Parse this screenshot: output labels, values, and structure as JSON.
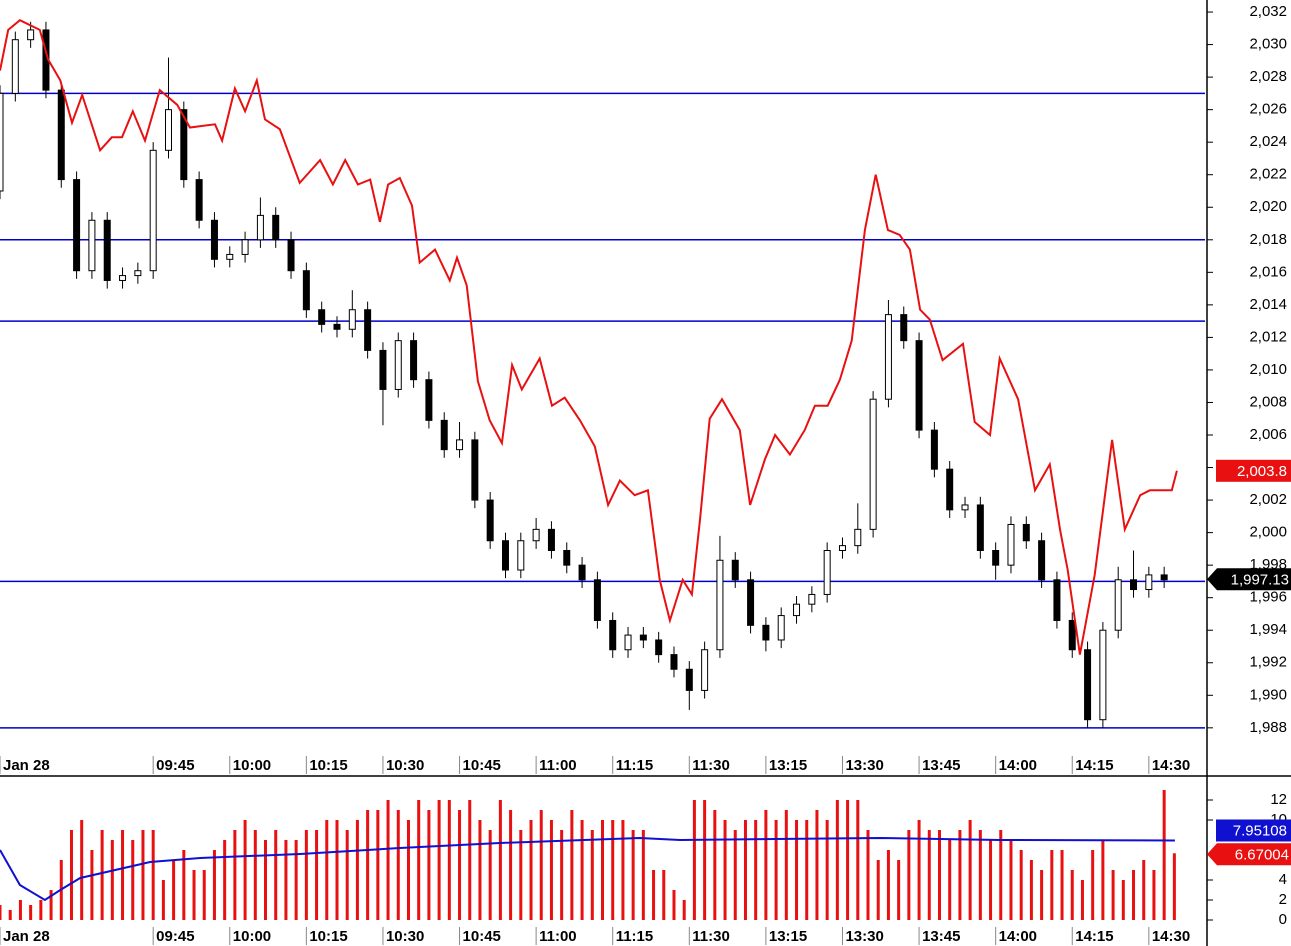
{
  "chart_data": [
    {
      "type": "candlestick",
      "xlim": [
        0,
        236
      ],
      "ylim": [
        1986.76,
        2032.74
      ],
      "xticks": [
        {
          "value": 0,
          "label": "Jan 28"
        },
        {
          "value": 30,
          "label": "09:45"
        },
        {
          "value": 45,
          "label": "10:00"
        },
        {
          "value": 60,
          "label": "10:15"
        },
        {
          "value": 75,
          "label": "10:30"
        },
        {
          "value": 90,
          "label": "10:45"
        },
        {
          "value": 105,
          "label": "11:00"
        },
        {
          "value": 120,
          "label": "11:15"
        },
        {
          "value": 135,
          "label": "11:30"
        },
        {
          "value": 150,
          "label": "13:15"
        },
        {
          "value": 165,
          "label": "13:30"
        },
        {
          "value": 180,
          "label": "13:45"
        },
        {
          "value": 195,
          "label": "14:00"
        },
        {
          "value": 210,
          "label": "14:15"
        },
        {
          "value": 225,
          "label": "14:30"
        }
      ],
      "yticks": [
        {
          "value": 1988,
          "label": "1,988"
        },
        {
          "value": 1990,
          "label": "1,990"
        },
        {
          "value": 1992,
          "label": "1,992"
        },
        {
          "value": 1994,
          "label": "1,994"
        },
        {
          "value": 1996,
          "label": "1,996"
        },
        {
          "value": 1998,
          "label": "1,998"
        },
        {
          "value": 2000,
          "label": "2,000"
        },
        {
          "value": 2002,
          "label": "2,002"
        },
        {
          "value": 2004,
          "label": "2,004"
        },
        {
          "value": 2006,
          "label": "2,006"
        },
        {
          "value": 2008,
          "label": "2,008"
        },
        {
          "value": 2010,
          "label": "2,010"
        },
        {
          "value": 2012,
          "label": "2,012"
        },
        {
          "value": 2014,
          "label": "2,014"
        },
        {
          "value": 2016,
          "label": "2,016"
        },
        {
          "value": 2018,
          "label": "2,018"
        },
        {
          "value": 2020,
          "label": "2,020"
        },
        {
          "value": 2022,
          "label": "2,022"
        },
        {
          "value": 2024,
          "label": "2,024"
        },
        {
          "value": 2026,
          "label": "2,026"
        },
        {
          "value": 2028,
          "label": "2,028"
        },
        {
          "value": 2030,
          "label": "2,030"
        },
        {
          "value": 2032,
          "label": "2,032"
        }
      ],
      "up_color": "#ffffff",
      "down_color": "#000000",
      "color": "#000000",
      "x": [
        0,
        3,
        6,
        9,
        12,
        15,
        18,
        21,
        24,
        27,
        30,
        33,
        36,
        39,
        42,
        45,
        48,
        51,
        54,
        57,
        60,
        63,
        66,
        69,
        72,
        75,
        78,
        81,
        84,
        87,
        90,
        93,
        96,
        99,
        102,
        105,
        108,
        111,
        114,
        117,
        120,
        123,
        126,
        129,
        132,
        135,
        138,
        141,
        144,
        147,
        150,
        153,
        156,
        159,
        162,
        165,
        168,
        171,
        174,
        177,
        180,
        183,
        186,
        189,
        192,
        195,
        198,
        201,
        204,
        207,
        210,
        213,
        216,
        219,
        222,
        225,
        228
      ],
      "open": [
        2021.0,
        2027.0,
        2030.3,
        2030.9,
        2027.2,
        2021.7,
        2016.1,
        2019.2,
        2015.5,
        2015.8,
        2016.1,
        2023.5,
        2026.0,
        2021.7,
        2019.2,
        2016.8,
        2017.1,
        2018.0,
        2019.5,
        2018.0,
        2016.1,
        2013.7,
        2012.8,
        2012.5,
        2013.7,
        2011.2,
        2008.8,
        2011.8,
        2009.4,
        2006.9,
        2005.1,
        2005.7,
        2002.0,
        1999.5,
        1997.7,
        1999.5,
        2000.2,
        1998.9,
        1998.0,
        1997.1,
        1994.6,
        1992.8,
        1993.7,
        1993.4,
        1992.5,
        1991.6,
        1990.3,
        1992.8,
        1998.3,
        1997.1,
        1994.3,
        1993.4,
        1994.9,
        1995.6,
        1996.2,
        1998.9,
        1999.2,
        2000.2,
        2008.2,
        2013.4,
        2011.8,
        2006.3,
        2003.9,
        2001.4,
        2001.7,
        1998.9,
        1998.0,
        2000.5,
        1999.5,
        1997.1,
        1994.6,
        1992.8,
        1988.5,
        1994.0,
        1997.1,
        1996.5,
        1997.4
      ],
      "high": [
        2027.5,
        2030.8,
        2031.4,
        2031.4,
        2027.7,
        2022.2,
        2019.7,
        2019.7,
        2016.3,
        2016.6,
        2024.0,
        2029.2,
        2026.5,
        2022.2,
        2019.7,
        2017.6,
        2018.5,
        2020.6,
        2020.0,
        2018.5,
        2016.6,
        2014.2,
        2013.3,
        2014.9,
        2014.2,
        2011.7,
        2012.3,
        2012.3,
        2009.9,
        2007.4,
        2006.8,
        2006.2,
        2002.5,
        2000.0,
        2000.0,
        2000.9,
        2000.7,
        1999.4,
        1998.5,
        1997.6,
        1995.1,
        1994.2,
        1994.2,
        1993.9,
        1993.0,
        1992.1,
        1993.3,
        1999.8,
        1998.8,
        1997.6,
        1994.8,
        1995.4,
        1996.1,
        1996.7,
        1999.4,
        1999.7,
        2001.8,
        2008.7,
        2014.3,
        2013.9,
        2012.3,
        2006.8,
        2004.4,
        2002.2,
        2002.2,
        1999.4,
        2001.0,
        2001.0,
        2000.0,
        1997.6,
        1995.1,
        1993.3,
        1994.5,
        1997.9,
        1998.9,
        1997.9,
        1997.9
      ],
      "low": [
        2020.5,
        2026.5,
        2029.8,
        2026.7,
        2021.2,
        2015.6,
        2015.6,
        2015.0,
        2015.0,
        2015.3,
        2015.6,
        2023.0,
        2021.2,
        2018.7,
        2016.3,
        2016.3,
        2016.6,
        2017.5,
        2017.5,
        2015.6,
        2013.2,
        2012.3,
        2012.0,
        2012.0,
        2010.7,
        2006.6,
        2008.3,
        2008.9,
        2006.4,
        2004.6,
        2004.6,
        2001.5,
        1999.0,
        1997.2,
        1997.2,
        1999.0,
        1998.4,
        1997.5,
        1996.6,
        1994.1,
        1992.3,
        1992.3,
        1992.9,
        1992.0,
        1991.1,
        1989.1,
        1989.8,
        1992.3,
        1996.6,
        1993.8,
        1992.7,
        1992.9,
        1994.4,
        1995.1,
        1995.7,
        1998.4,
        1998.7,
        1999.7,
        2007.7,
        2011.3,
        2005.8,
        2003.4,
        2000.9,
        2000.9,
        1998.4,
        1997.1,
        1997.5,
        1999.0,
        1996.6,
        1994.1,
        1992.3,
        1988.0,
        1988.0,
        1993.5,
        1996.0,
        1996.0,
        1996.6
      ],
      "close": [
        2027.0,
        2030.3,
        2030.9,
        2027.2,
        2021.7,
        2016.1,
        2019.2,
        2015.5,
        2015.8,
        2016.1,
        2023.5,
        2026.0,
        2021.7,
        2019.2,
        2016.8,
        2017.1,
        2018.0,
        2019.5,
        2018.0,
        2016.1,
        2013.7,
        2012.8,
        2012.5,
        2013.7,
        2011.2,
        2008.8,
        2011.8,
        2009.4,
        2006.9,
        2005.1,
        2005.7,
        2002.0,
        1999.5,
        1997.7,
        1999.5,
        2000.2,
        1998.9,
        1998.0,
        1997.1,
        1994.6,
        1992.8,
        1993.7,
        1993.4,
        1992.5,
        1991.6,
        1990.3,
        1992.8,
        1998.3,
        1997.1,
        1994.3,
        1993.4,
        1994.9,
        1995.6,
        1996.2,
        1998.9,
        1999.2,
        2000.2,
        2008.2,
        2013.4,
        2011.8,
        2006.3,
        2003.9,
        2001.4,
        2001.7,
        1998.9,
        1998.0,
        2000.5,
        1999.5,
        1997.1,
        1994.6,
        1992.8,
        1988.5,
        1994.0,
        1997.1,
        1996.5,
        1997.4,
        1997.1
      ],
      "last": {
        "value": 1997.13,
        "label": "1,997.13"
      },
      "hlines": {
        "color": "#0000cc",
        "values": [
          2027,
          2018,
          2013,
          1997,
          1988
        ]
      },
      "series": [
        {
          "color": "#e81010",
          "x": [
            0,
            1.6,
            3.9,
            7.8,
            9.4,
            11.8,
            14.1,
            16.1,
            19.6,
            21.9,
            23.9,
            26.0,
            28.4,
            31.3,
            34.7,
            37.2,
            42.1,
            43.5,
            46.0,
            48.0,
            50.3,
            51.9,
            54.8,
            58.7,
            62.7,
            65.2,
            67.6,
            70.1,
            72.5,
            74.4,
            76.0,
            78.3,
            80.7,
            82.2,
            85.2,
            88.1,
            89.5,
            91.4,
            93.6,
            95.9,
            98.3,
            100.3,
            102.2,
            105.7,
            108.1,
            110.6,
            113.6,
            116.5,
            119.1,
            121.4,
            124.3,
            126.9,
            129.2,
            131.2,
            133.7,
            135.5,
            137.1,
            139.0,
            141.4,
            144.9,
            146.9,
            149.8,
            151.8,
            154.7,
            157.6,
            159.6,
            162.1,
            164.5,
            166.8,
            169.4,
            171.5,
            173.9,
            176.2,
            178.2,
            180.2,
            182.1,
            184.6,
            188.6,
            190.9,
            193.9,
            195.8,
            199.4,
            202.7,
            205.6,
            207.6,
            209.1,
            211.5,
            214.4,
            217.8,
            220.3,
            223.3,
            225.2,
            229.5,
            230.5
          ],
          "values": [
            2028.4,
            2030.9,
            2031.5,
            2030.9,
            2029.1,
            2027.8,
            2025.2,
            2026.9,
            2023.5,
            2024.3,
            2024.3,
            2025.9,
            2024.1,
            2027.2,
            2026.3,
            2024.9,
            2025.1,
            2024.1,
            2027.3,
            2025.9,
            2027.8,
            2025.4,
            2024.8,
            2021.5,
            2022.9,
            2021.4,
            2022.9,
            2021.4,
            2021.7,
            2019.1,
            2021.4,
            2021.8,
            2020.1,
            2016.6,
            2017.4,
            2015.5,
            2016.9,
            2015.2,
            2009.3,
            2006.9,
            2005.5,
            2010.3,
            2008.8,
            2010.7,
            2007.8,
            2008.3,
            2006.9,
            2005.3,
            2001.7,
            2003.2,
            2002.3,
            2002.6,
            1997.1,
            1994.6,
            1997.1,
            1996.2,
            2000.8,
            2007.0,
            2008.2,
            2006.3,
            2001.7,
            2004.5,
            2006.0,
            2004.8,
            2006.3,
            2007.8,
            2007.8,
            2009.4,
            2011.8,
            2018.6,
            2022.0,
            2018.6,
            2018.3,
            2017.4,
            2013.7,
            2013.1,
            2010.6,
            2011.6,
            2006.8,
            2006.0,
            2010.7,
            2008.2,
            2002.6,
            2004.2,
            2000.2,
            1997.7,
            1992.5,
            1997.4,
            2005.7,
            2000.2,
            2002.3,
            2002.6,
            2002.6,
            2003.8
          ],
          "last": {
            "value": 2003.8,
            "label": "2,003.8"
          }
        }
      ]
    },
    {
      "type": "bar",
      "xlim": [
        0,
        236
      ],
      "ylim": [
        -2,
        14
      ],
      "xticks": [
        {
          "value": 0,
          "label": "Jan 28"
        },
        {
          "value": 30,
          "label": "09:45"
        },
        {
          "value": 45,
          "label": "10:00"
        },
        {
          "value": 60,
          "label": "10:15"
        },
        {
          "value": 75,
          "label": "10:30"
        },
        {
          "value": 90,
          "label": "10:45"
        },
        {
          "value": 105,
          "label": "11:00"
        },
        {
          "value": 120,
          "label": "11:15"
        },
        {
          "value": 135,
          "label": "11:30"
        },
        {
          "value": 150,
          "label": "13:15"
        },
        {
          "value": 165,
          "label": "13:30"
        },
        {
          "value": 180,
          "label": "13:45"
        },
        {
          "value": 195,
          "label": "14:00"
        },
        {
          "value": 210,
          "label": "14:15"
        },
        {
          "value": 225,
          "label": "14:30"
        }
      ],
      "yticks": [
        0,
        2,
        4,
        10,
        12
      ],
      "color": "#e81010",
      "x": [
        0,
        2,
        4,
        6,
        8,
        10,
        12,
        14,
        16,
        18,
        20,
        22,
        24,
        26,
        28,
        30,
        32,
        34,
        36,
        38,
        40,
        42,
        44,
        46,
        48,
        50,
        52,
        54,
        56,
        58,
        60,
        62,
        64,
        66,
        68,
        70,
        72,
        74,
        76,
        78,
        80,
        82,
        84,
        86,
        88,
        90,
        92,
        94,
        96,
        98,
        100,
        102,
        104,
        106,
        108,
        110,
        112,
        114,
        116,
        118,
        120,
        122,
        124,
        126,
        128,
        130,
        132,
        134,
        136,
        138,
        140,
        142,
        144,
        146,
        148,
        150,
        152,
        154,
        156,
        158,
        160,
        162,
        164,
        166,
        168,
        170,
        172,
        174,
        176,
        178,
        180,
        182,
        184,
        186,
        188,
        190,
        192,
        194,
        196,
        198,
        200,
        202,
        204,
        206,
        208,
        210,
        212,
        214,
        216,
        218,
        220,
        222,
        224,
        226,
        228,
        230
      ],
      "values": [
        1.5,
        1,
        2,
        1.5,
        2,
        3,
        6,
        9,
        10,
        7,
        9,
        8,
        9,
        8,
        9,
        9,
        4,
        6,
        7,
        5,
        5,
        7,
        8,
        9,
        10,
        9,
        8,
        9,
        8,
        8,
        9,
        9,
        10,
        10,
        9,
        10,
        11,
        11,
        12,
        11,
        10,
        12,
        11,
        12,
        12,
        11,
        12,
        10,
        9,
        12,
        11,
        9,
        10,
        11,
        10,
        9,
        11,
        10,
        9,
        10,
        10,
        10,
        9,
        9,
        5,
        5,
        3,
        2,
        12,
        12,
        11,
        10,
        9,
        10,
        10,
        11,
        10,
        11,
        10,
        10,
        11,
        10,
        12,
        12,
        12,
        9,
        6,
        7,
        6,
        9,
        10,
        9,
        9,
        8,
        9,
        10,
        9,
        8,
        9,
        8,
        7,
        6,
        5,
        7,
        7,
        5,
        4,
        7,
        8,
        5,
        4,
        5,
        6,
        5,
        13,
        6.67004
      ],
      "last": {
        "value": 6.67004,
        "label": "6.67004"
      },
      "series": [
        {
          "color": "#1010d0",
          "x": [
            0,
            3.9,
            8.8,
            11.8,
            15.7,
            29.4,
            39.2,
            58.8,
            78.3,
            97.9,
            125.3,
            133.2,
            172.3,
            195.8,
            230.1
          ],
          "values": [
            7,
            3.5,
            2,
            3,
            4.2,
            5.8,
            6.2,
            6.6,
            7.2,
            7.7,
            8.2,
            8.0,
            8.2,
            8.0,
            7.95108
          ],
          "last": {
            "value": 7.95108,
            "label": "7.95108"
          }
        }
      ]
    }
  ]
}
